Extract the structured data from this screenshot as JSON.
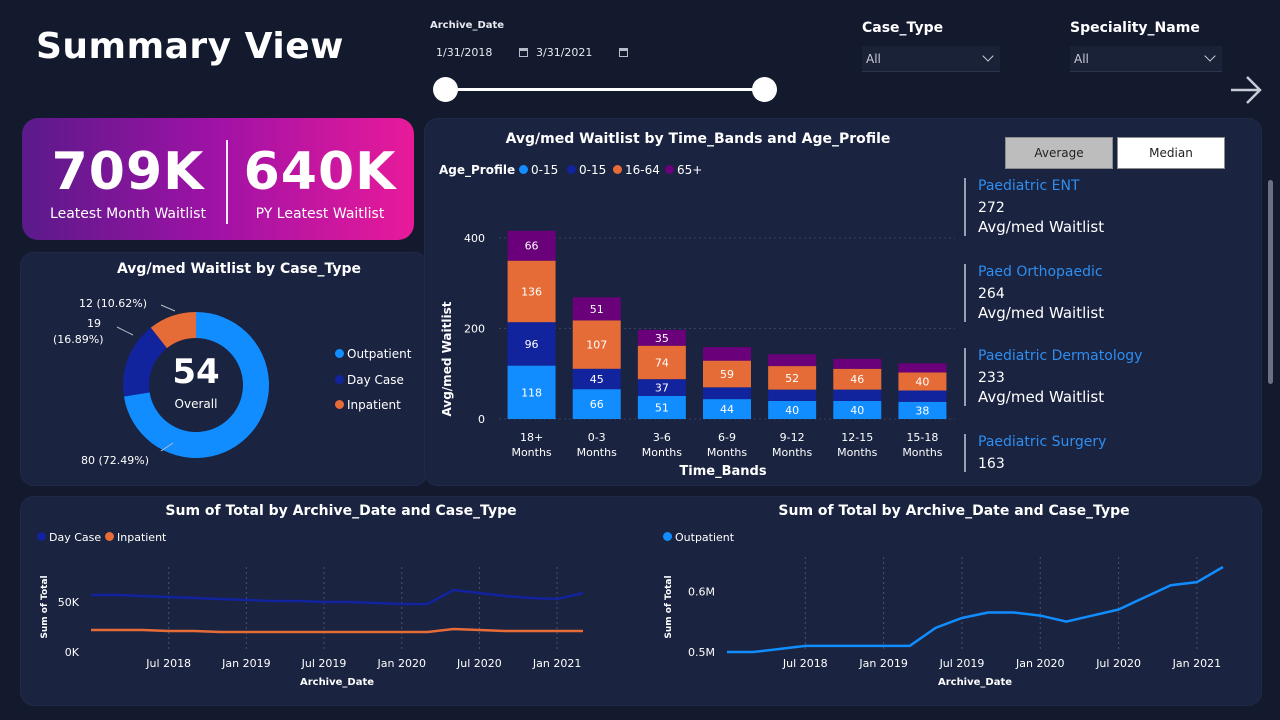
{
  "page": {
    "title": "Summary View"
  },
  "filters": {
    "archive_date": {
      "label": "Archive_Date",
      "start": "1/31/2018",
      "end": "3/31/2021"
    },
    "case_type": {
      "label": "Case_Type",
      "value": "All"
    },
    "speciality": {
      "label": "Speciality_Name",
      "value": "All"
    }
  },
  "kpis": [
    {
      "value": "709K",
      "label": "Leatest Month Waitlist"
    },
    {
      "value": "640K",
      "label": "PY Leatest Waitlist"
    }
  ],
  "donut": {
    "title": "Avg/med Waitlist by Case_Type",
    "center_value": "54",
    "center_label": "Overall",
    "labels": {
      "inpatient": "12 (10.62%)",
      "daycase_a": "19",
      "daycase_b": "(16.89%)",
      "outpatient": "80 (72.49%)"
    },
    "legend": [
      "Outpatient",
      "Day Case",
      "Inpatient"
    ]
  },
  "bar_chart": {
    "title": "Avg/med Waitlist by Time_Bands and Age_Profile",
    "legend_title": "Age_Profile",
    "legend": [
      "0-15",
      "0-15",
      "16-64",
      "65+"
    ],
    "xlabel": "Time_Bands",
    "ylabel": "Avg/med Waitlist",
    "yticks": [
      "0",
      "200",
      "400"
    ],
    "toggle": {
      "average": "Average",
      "median": "Median"
    }
  },
  "specialities": [
    {
      "name": "Paediatric ENT",
      "value": "272",
      "sub": "Avg/med Waitlist"
    },
    {
      "name": "Paed Orthopaedic",
      "value": "264",
      "sub": "Avg/med Waitlist"
    },
    {
      "name": "Paediatric Dermatology",
      "value": "233",
      "sub": "Avg/med Waitlist"
    },
    {
      "name": "Paediatric Surgery",
      "value": "163",
      "sub": ""
    }
  ],
  "line_left": {
    "title": "Sum of Total by Archive_Date and Case_Type",
    "legend": [
      "Day Case",
      "Inpatient"
    ],
    "xlabel": "Archive_Date",
    "ylabel": "Sum of Total",
    "yticks": [
      "0K",
      "50K"
    ],
    "xticks": [
      "Jul 2018",
      "Jan 2019",
      "Jul 2019",
      "Jan 2020",
      "Jul 2020",
      "Jan 2021"
    ]
  },
  "line_right": {
    "title": "Sum of Total by Archive_Date and Case_Type",
    "legend": [
      "Outpatient"
    ],
    "xlabel": "Archive_Date",
    "ylabel": "Sum of Total",
    "yticks": [
      "0.5M",
      "0.6M"
    ],
    "xticks": [
      "Jul 2018",
      "Jan 2019",
      "Jul 2019",
      "Jan 2020",
      "Jul 2020",
      "Jan 2021"
    ]
  },
  "colors": {
    "outpatient": "#118dff",
    "daycase": "#12239e",
    "inpatient": "#e66c37",
    "age_65": "#6b007b",
    "kpi_gradient_start": "#5a1a8a",
    "kpi_gradient_end": "#e81a9a"
  },
  "chart_data": [
    {
      "type": "pie",
      "title": "Avg/med Waitlist by Case_Type",
      "categories": [
        "Outpatient",
        "Day Case",
        "Inpatient"
      ],
      "values": [
        80,
        19,
        12
      ],
      "percent": [
        72.49,
        16.89,
        10.62
      ]
    },
    {
      "type": "bar",
      "title": "Avg/med Waitlist by Time_Bands and Age_Profile",
      "categories": [
        "18+ Months",
        "0-3 Months",
        "3-6 Months",
        "6-9 Months",
        "9-12 Months",
        "12-15 Months",
        "15-18 Months"
      ],
      "series": [
        {
          "name": "0-15",
          "values": [
            118,
            66,
            51,
            44,
            40,
            40,
            38
          ]
        },
        {
          "name": "0-15",
          "values": [
            96,
            45,
            37,
            26,
            25,
            25,
            25
          ]
        },
        {
          "name": "16-64",
          "values": [
            136,
            107,
            74,
            59,
            52,
            46,
            40
          ]
        },
        {
          "name": "65+",
          "values": [
            66,
            51,
            35,
            30,
            26,
            22,
            20
          ]
        }
      ],
      "xlabel": "Time_Bands",
      "ylabel": "Avg/med Waitlist",
      "ylim": [
        0,
        430
      ],
      "stacked": true
    },
    {
      "type": "line",
      "title": "Sum of Total by Archive_Date and Case_Type",
      "x": [
        "2018-01",
        "2018-03",
        "2018-05",
        "2018-07",
        "2018-09",
        "2018-11",
        "2019-01",
        "2019-03",
        "2019-05",
        "2019-07",
        "2019-09",
        "2019-11",
        "2020-01",
        "2020-03",
        "2020-05",
        "2020-07",
        "2020-09",
        "2020-11",
        "2021-01",
        "2021-03"
      ],
      "series": [
        {
          "name": "Day Case",
          "values": [
            57,
            57,
            56,
            55,
            54,
            53,
            52,
            51,
            51,
            50,
            50,
            49,
            48,
            48,
            62,
            59,
            56,
            54,
            53,
            59
          ]
        },
        {
          "name": "Inpatient",
          "values": [
            22,
            22,
            22,
            21,
            21,
            20,
            20,
            20,
            20,
            20,
            20,
            20,
            20,
            20,
            23,
            22,
            21,
            21,
            21,
            21
          ]
        }
      ],
      "xlabel": "Archive_Date",
      "ylabel": "Sum of Total",
      "ylim": [
        0,
        75
      ]
    },
    {
      "type": "line",
      "title": "Sum of Total by Archive_Date and Case_Type",
      "x": [
        "2018-01",
        "2018-03",
        "2018-05",
        "2018-07",
        "2018-09",
        "2018-11",
        "2019-01",
        "2019-03",
        "2019-05",
        "2019-07",
        "2019-09",
        "2019-11",
        "2020-01",
        "2020-03",
        "2020-05",
        "2020-07",
        "2020-09",
        "2020-11",
        "2021-01",
        "2021-03"
      ],
      "series": [
        {
          "name": "Outpatient",
          "values": [
            0.5,
            0.5,
            0.505,
            0.51,
            0.51,
            0.51,
            0.51,
            0.51,
            0.54,
            0.556,
            0.565,
            0.565,
            0.56,
            0.55,
            0.56,
            0.57,
            0.59,
            0.61,
            0.615,
            0.64
          ]
        }
      ],
      "xlabel": "Archive_Date",
      "ylabel": "Sum of Total",
      "ylim": [
        0.5,
        0.64
      ]
    }
  ]
}
